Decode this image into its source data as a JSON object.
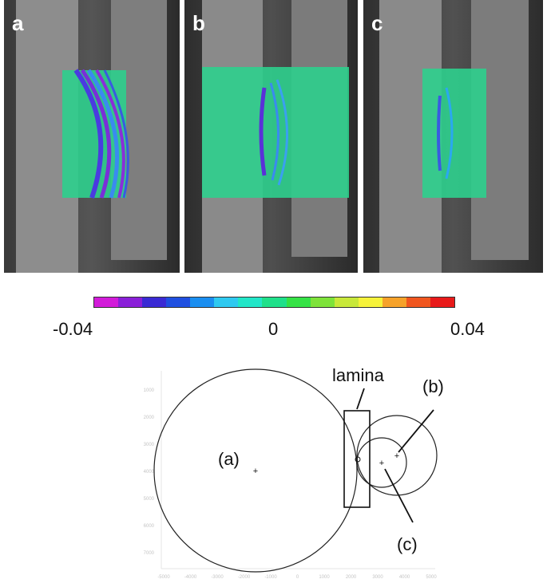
{
  "panels": [
    {
      "label": "a"
    },
    {
      "label": "b"
    },
    {
      "label": "c"
    }
  ],
  "colorbar": {
    "colors": [
      "#d21bd9",
      "#8a1fd8",
      "#3a2ad4",
      "#1f4fe0",
      "#1a8ef0",
      "#2fc9f0",
      "#22e6c8",
      "#1fe08a",
      "#35e246",
      "#7ee33a",
      "#c8e83a",
      "#f6f23a",
      "#f6a22a",
      "#f0561f",
      "#e81a1a"
    ],
    "min_label": "-0.04",
    "mid_label": "0",
    "max_label": "0.04"
  },
  "diagram": {
    "label_a": "(a)",
    "label_lamina": "lamina",
    "label_b": "(b)",
    "label_c": "(c)",
    "y_ticks": [
      "1000",
      "2000",
      "3000",
      "4000",
      "5000",
      "6000",
      "7000"
    ],
    "x_ticks": [
      "-5000",
      "-4000",
      "-3000",
      "-2000",
      "-1000",
      "0",
      "1000",
      "2000",
      "3000",
      "4000",
      "5000"
    ]
  }
}
